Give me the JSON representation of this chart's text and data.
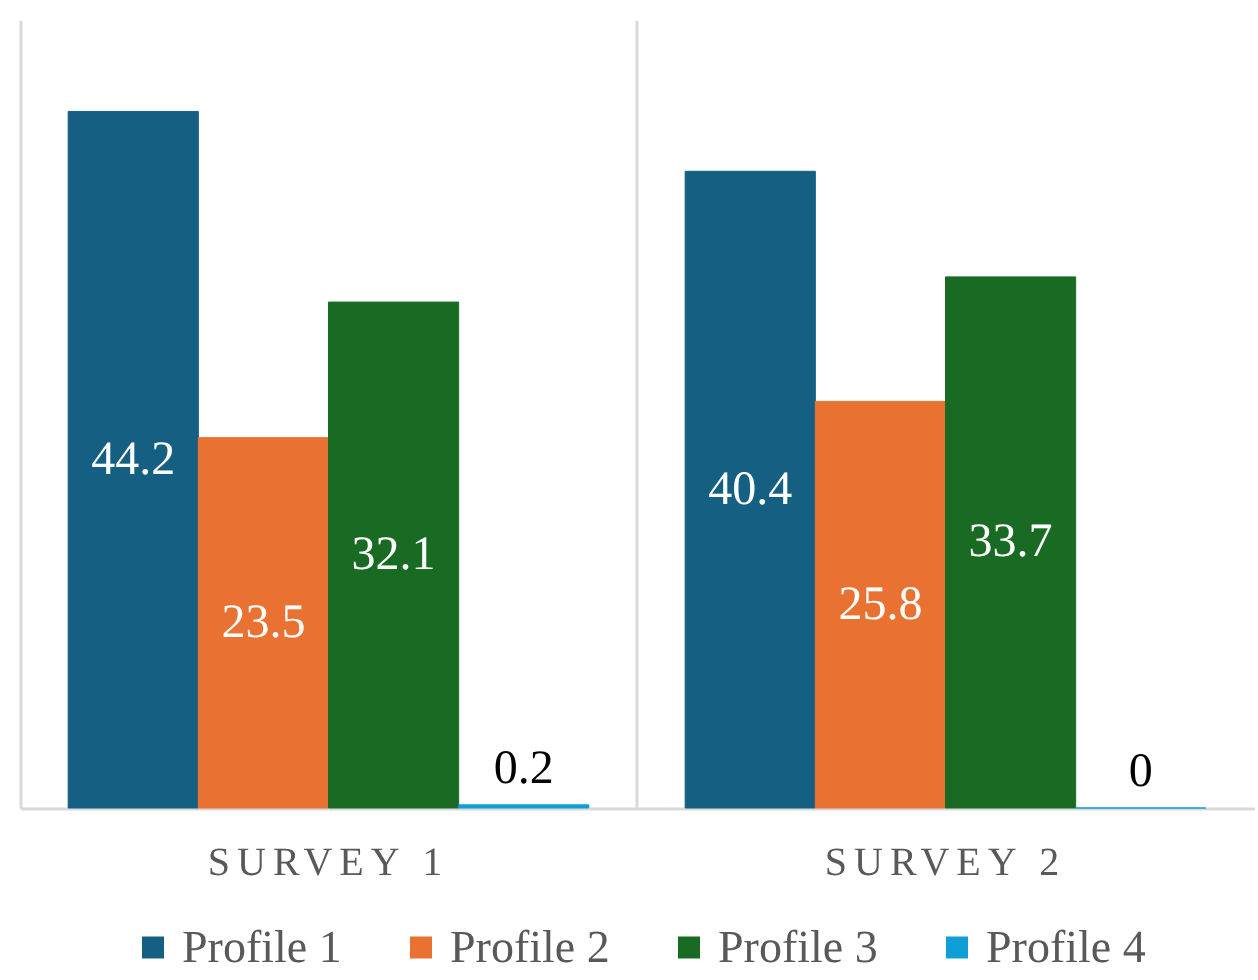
{
  "chart_data": {
    "type": "bar",
    "categories": [
      "SURVEY 1",
      "SURVEY 2"
    ],
    "series": [
      {
        "name": "Profile 1",
        "color": "#156082",
        "values": [
          44.2,
          40.4
        ]
      },
      {
        "name": "Profile 2",
        "color": "#e97132",
        "values": [
          23.5,
          25.8
        ]
      },
      {
        "name": "Profile 3",
        "color": "#196b24",
        "values": [
          32.1,
          33.7
        ]
      },
      {
        "name": "Profile 4",
        "color": "#0f9ed5",
        "values": [
          0.2,
          0
        ]
      }
    ],
    "data_labels": true,
    "legend": "bottom",
    "grid": "x",
    "tick_labels": "x"
  }
}
